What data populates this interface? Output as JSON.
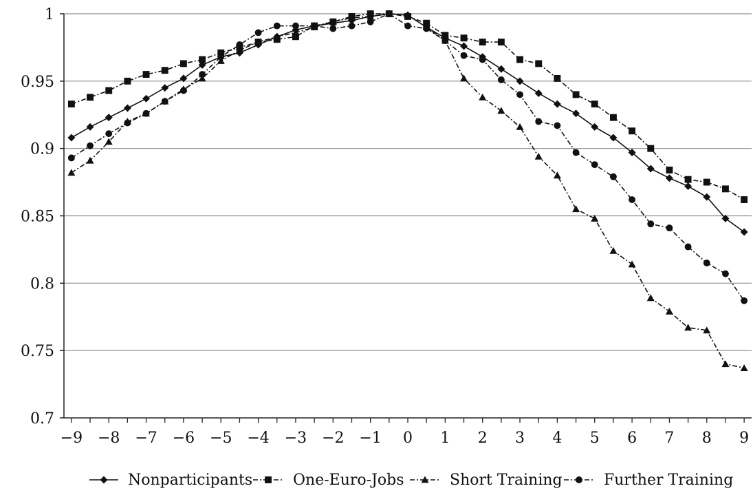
{
  "chart_data": {
    "type": "line",
    "title": "",
    "xlabel": "",
    "ylabel": "",
    "x": [
      -9,
      -8.5,
      -8,
      -7.5,
      -7,
      -6.5,
      -6,
      -5.5,
      -5,
      -4.5,
      -4,
      -3.5,
      -3,
      -2.5,
      -2,
      -1.5,
      -1,
      -0.5,
      0,
      0.5,
      1,
      1.5,
      2,
      2.5,
      3,
      3.5,
      4,
      4.5,
      5,
      5.5,
      6,
      6.5,
      7,
      7.5,
      8,
      8.5,
      9
    ],
    "xlim": [
      -9.2,
      9.2
    ],
    "ylim": [
      0.7,
      1.0
    ],
    "xticks": [
      -9,
      -8,
      -7,
      -6,
      -5,
      -4,
      -3,
      -2,
      -1,
      0,
      1,
      2,
      3,
      4,
      5,
      6,
      7,
      8,
      9
    ],
    "xtick_labels": [
      "−9",
      "−8",
      "−7",
      "−6",
      "−5",
      "−4",
      "−3",
      "−2",
      "−1",
      "0",
      "1",
      "2",
      "3",
      "4",
      "5",
      "6",
      "7",
      "8",
      "9"
    ],
    "yticks": [
      0.7,
      0.75,
      0.8,
      0.85,
      0.9,
      0.95,
      1.0
    ],
    "ytick_labels": [
      "0.7",
      "0.75",
      "0.8",
      "0.85",
      "0.9",
      "0.95",
      "1"
    ],
    "grid": "horizontal",
    "legend_position": "bottom",
    "series": [
      {
        "name": "Nonparticipants",
        "marker": "diamond",
        "dash": "solid",
        "values": [
          0.908,
          0.916,
          0.923,
          0.93,
          0.937,
          0.945,
          0.952,
          0.962,
          0.968,
          0.971,
          0.977,
          0.983,
          0.988,
          0.991,
          0.993,
          0.995,
          0.998,
          1.0,
          0.999,
          0.99,
          0.982,
          0.976,
          0.968,
          0.959,
          0.95,
          0.941,
          0.933,
          0.926,
          0.916,
          0.908,
          0.897,
          0.885,
          0.878,
          0.872,
          0.864,
          0.848,
          0.838
        ]
      },
      {
        "name": "One-Euro-Jobs",
        "marker": "square",
        "dash": "dashdot",
        "values": [
          0.933,
          0.938,
          0.943,
          0.95,
          0.955,
          0.958,
          0.963,
          0.966,
          0.971,
          0.975,
          0.979,
          0.981,
          0.983,
          0.991,
          0.994,
          0.998,
          1.0,
          1.0,
          0.998,
          0.993,
          0.984,
          0.982,
          0.979,
          0.979,
          0.966,
          0.963,
          0.952,
          0.94,
          0.933,
          0.923,
          0.913,
          0.9,
          0.884,
          0.877,
          0.875,
          0.87,
          0.862
        ]
      },
      {
        "name": "Short Training",
        "marker": "triangle",
        "dash": "dashdot",
        "values": [
          0.882,
          0.891,
          0.905,
          0.92,
          0.926,
          0.935,
          0.944,
          0.952,
          0.965,
          0.973,
          0.979,
          0.983,
          0.986,
          0.99,
          0.994,
          0.997,
          0.998,
          1.0,
          0.999,
          0.99,
          0.98,
          0.952,
          0.938,
          0.928,
          0.916,
          0.894,
          0.88,
          0.855,
          0.848,
          0.824,
          0.814,
          0.789,
          0.779,
          0.767,
          0.765,
          0.74,
          0.737
        ]
      },
      {
        "name": "Further Training",
        "marker": "circle",
        "dash": "dashdot",
        "values": [
          0.893,
          0.902,
          0.911,
          0.919,
          0.926,
          0.935,
          0.943,
          0.955,
          0.968,
          0.977,
          0.986,
          0.991,
          0.991,
          0.991,
          0.989,
          0.991,
          0.994,
          1.0,
          0.991,
          0.989,
          0.98,
          0.969,
          0.966,
          0.951,
          0.94,
          0.92,
          0.917,
          0.897,
          0.888,
          0.879,
          0.862,
          0.844,
          0.841,
          0.827,
          0.815,
          0.807,
          0.787
        ]
      }
    ]
  }
}
